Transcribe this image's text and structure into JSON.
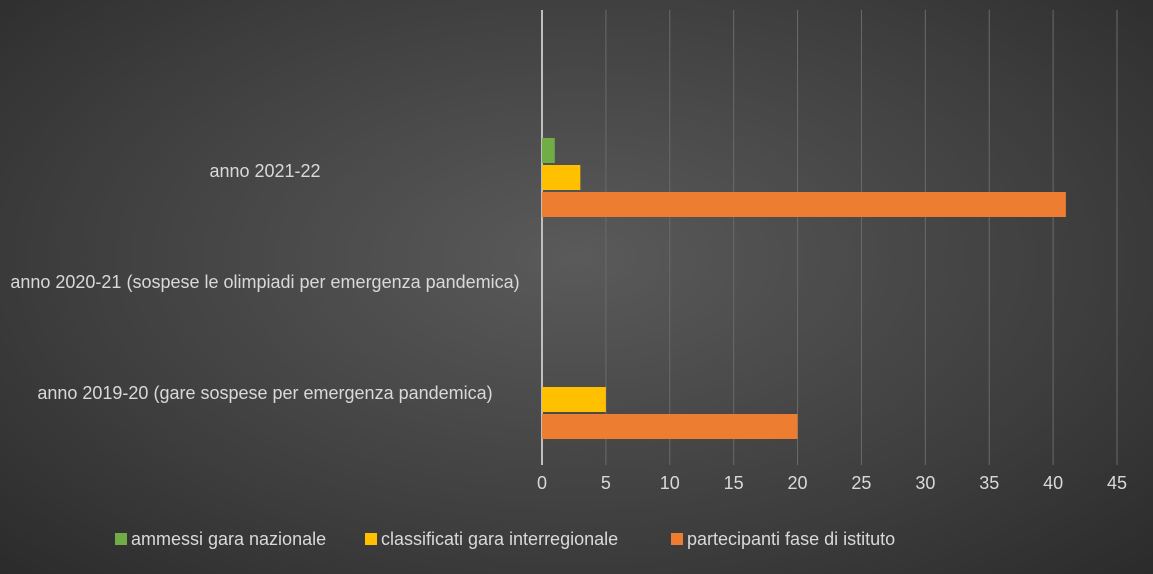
{
  "chart_data": {
    "type": "bar",
    "orientation": "horizontal",
    "categories": [
      "anno 2019-20 (gare sospese per emergenza pandemica)",
      "anno 2020-21 (sospese le olimpiadi per emergenza pandemica)",
      "anno 2021-22"
    ],
    "series": [
      {
        "name": "ammessi gara nazionale",
        "color": "#70ad47",
        "values": [
          0,
          0,
          1
        ]
      },
      {
        "name": "classificati gara interregionale",
        "color": "#ffc000",
        "values": [
          5,
          0,
          3
        ]
      },
      {
        "name": "partecipanti fase di istituto",
        "color": "#ed7d31",
        "values": [
          20,
          0,
          41
        ]
      }
    ],
    "xlim": [
      0,
      45
    ],
    "xticks": [
      0,
      5,
      10,
      15,
      20,
      25,
      30,
      35,
      40,
      45
    ],
    "grid": true,
    "legend": "bottom"
  }
}
